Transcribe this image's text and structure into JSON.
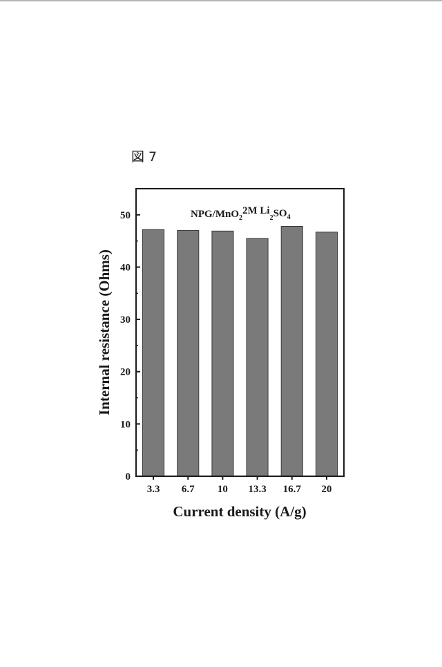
{
  "figure": {
    "label": "図 7"
  },
  "chart_data": {
    "type": "bar",
    "categories": [
      "3.3",
      "6.7",
      "10",
      "13.3",
      "16.7",
      "20"
    ],
    "series": [
      {
        "values": [
          47.2,
          47.0,
          46.9,
          45.5,
          47.8,
          46.7
        ]
      }
    ],
    "xlabel": "Current density (A/g)",
    "ylabel": "Internal resistance (Ohms)",
    "ylim": [
      0,
      55
    ],
    "yticks": [
      "0",
      "10",
      "20",
      "30",
      "40",
      "50"
    ],
    "annotation": {
      "text": "NPG/MnO",
      "sub1": "2",
      "mid": "2M Li",
      "sub2": "2",
      "tail": "SO",
      "sub3": "4"
    },
    "grid": false,
    "bar_color": "#7a7a7a"
  }
}
